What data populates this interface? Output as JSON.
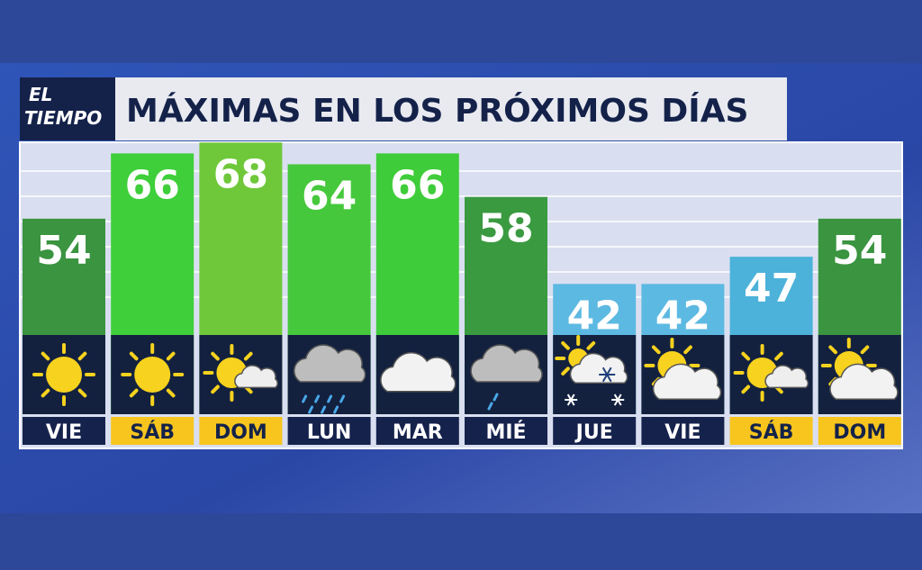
{
  "chart_data": {
    "type": "bar",
    "logo": [
      "EL",
      "TIEMPO"
    ],
    "title": "MÁXIMAS EN LOS PRÓXIMOS DÍAS",
    "categories": [
      "VIE",
      "SÁB",
      "DOM",
      "LUN",
      "MAR",
      "MIÉ",
      "JUE",
      "VIE",
      "SÁB",
      "DOM"
    ],
    "values": [
      54,
      66,
      68,
      64,
      66,
      58,
      42,
      42,
      47,
      54
    ],
    "colors": [
      "#3a9440",
      "#3ecf3a",
      "#6fc83a",
      "#46c83c",
      "#3fcc3a",
      "#3a9a40",
      "#5cb9e2",
      "#5cb9e2",
      "#4cb2da",
      "#3a9440"
    ],
    "category_colors": [
      "#15224c",
      "#f7c51e",
      "#f7c51e",
      "#15224c",
      "#15224c",
      "#15224c",
      "#15224c",
      "#15224c",
      "#f7c51e",
      "#f7c51e"
    ]
  }
}
